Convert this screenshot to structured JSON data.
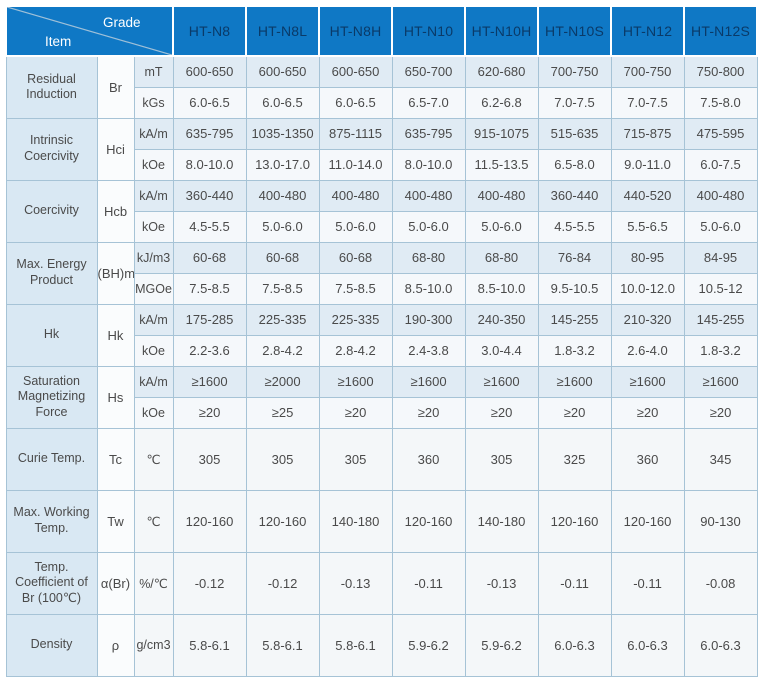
{
  "chart_data": {
    "type": "table",
    "corner": {
      "top_right": "Grade",
      "bottom_left": "Item"
    },
    "grade_columns": [
      "HT-N8",
      "HT-N8L",
      "HT-N8H",
      "HT-N10",
      "HT-N10H",
      "HT-N10S",
      "HT-N12",
      "HT-N12S"
    ],
    "rows": [
      {
        "item": "Residual Induction",
        "symbol": "Br",
        "subrows": [
          {
            "unit": "mT",
            "values": [
              "600-650",
              "600-650",
              "600-650",
              "650-700",
              "620-680",
              "700-750",
              "700-750",
              "750-800"
            ]
          },
          {
            "unit": "kGs",
            "values": [
              "6.0-6.5",
              "6.0-6.5",
              "6.0-6.5",
              "6.5-7.0",
              "6.2-6.8",
              "7.0-7.5",
              "7.0-7.5",
              "7.5-8.0"
            ]
          }
        ]
      },
      {
        "item": "Intrinsic Coercivity",
        "symbol": "Hci",
        "subrows": [
          {
            "unit": "kA/m",
            "values": [
              "635-795",
              "1035-1350",
              "875-1115",
              "635-795",
              "915-1075",
              "515-635",
              "715-875",
              "475-595"
            ]
          },
          {
            "unit": "kOe",
            "values": [
              "8.0-10.0",
              "13.0-17.0",
              "11.0-14.0",
              "8.0-10.0",
              "11.5-13.5",
              "6.5-8.0",
              "9.0-11.0",
              "6.0-7.5"
            ]
          }
        ]
      },
      {
        "item": "Coercivity",
        "symbol": "Hcb",
        "subrows": [
          {
            "unit": "kA/m",
            "values": [
              "360-440",
              "400-480",
              "400-480",
              "400-480",
              "400-480",
              "360-440",
              "440-520",
              "400-480"
            ]
          },
          {
            "unit": "kOe",
            "values": [
              "4.5-5.5",
              "5.0-6.0",
              "5.0-6.0",
              "5.0-6.0",
              "5.0-6.0",
              "4.5-5.5",
              "5.5-6.5",
              "5.0-6.0"
            ]
          }
        ]
      },
      {
        "item": "Max. Energy Product",
        "symbol": "(BH)m",
        "subrows": [
          {
            "unit": "kJ/m3",
            "values": [
              "60-68",
              "60-68",
              "60-68",
              "68-80",
              "68-80",
              "76-84",
              "80-95",
              "84-95"
            ]
          },
          {
            "unit": "MGOe",
            "values": [
              "7.5-8.5",
              "7.5-8.5",
              "7.5-8.5",
              "8.5-10.0",
              "8.5-10.0",
              "9.5-10.5",
              "10.0-12.0",
              "10.5-12"
            ]
          }
        ]
      },
      {
        "item": "Hk",
        "symbol": "Hk",
        "subrows": [
          {
            "unit": "kA/m",
            "values": [
              "175-285",
              "225-335",
              "225-335",
              "190-300",
              "240-350",
              "145-255",
              "210-320",
              "145-255"
            ]
          },
          {
            "unit": "kOe",
            "values": [
              "2.2-3.6",
              "2.8-4.2",
              "2.8-4.2",
              "2.4-3.8",
              "3.0-4.4",
              "1.8-3.2",
              "2.6-4.0",
              "1.8-3.2"
            ]
          }
        ]
      },
      {
        "item": "Saturation Magnetizing Force",
        "symbol": "Hs",
        "subrows": [
          {
            "unit": "kA/m",
            "values": [
              "≥1600",
              "≥2000",
              "≥1600",
              "≥1600",
              "≥1600",
              "≥1600",
              "≥1600",
              "≥1600"
            ]
          },
          {
            "unit": "kOe",
            "values": [
              "≥20",
              "≥25",
              "≥20",
              "≥20",
              "≥20",
              "≥20",
              "≥20",
              "≥20"
            ]
          }
        ]
      },
      {
        "item": "Curie Temp.",
        "symbol": "Tc",
        "subrows": [
          {
            "unit": "℃",
            "values": [
              "305",
              "305",
              "305",
              "360",
              "305",
              "325",
              "360",
              "345"
            ]
          }
        ]
      },
      {
        "item": "Max. Working Temp.",
        "symbol": "Tw",
        "subrows": [
          {
            "unit": "℃",
            "values": [
              "120-160",
              "120-160",
              "140-180",
              "120-160",
              "140-180",
              "120-160",
              "120-160",
              "90-130"
            ]
          }
        ]
      },
      {
        "item": "Temp. Coefficient of Br  (100℃)",
        "symbol": "α(Br)",
        "subrows": [
          {
            "unit": "%/℃",
            "values": [
              "-0.12",
              "-0.12",
              "-0.13",
              "-0.11",
              "-0.13",
              "-0.11",
              "-0.11",
              "-0.08"
            ]
          }
        ]
      },
      {
        "item": "Density",
        "symbol": "ρ",
        "subrows": [
          {
            "unit": "g/cm3",
            "values": [
              "5.8-6.1",
              "5.8-6.1",
              "5.8-6.1",
              "5.9-6.2",
              "5.9-6.2",
              "6.0-6.3",
              "6.0-6.3",
              "6.0-6.3"
            ]
          }
        ]
      }
    ]
  },
  "colors": {
    "header_bg": "#0f78c5",
    "grade_text": "#0a3a68",
    "corner_text": "#ffffff",
    "alt_row_bg": "#e0ebf4",
    "plain_row_bg": "#f5f8fb",
    "item_col_bg": "#d9e8f3",
    "symbol_col_bg": "#fafcfd",
    "grid_border": "#a6c3d6"
  }
}
